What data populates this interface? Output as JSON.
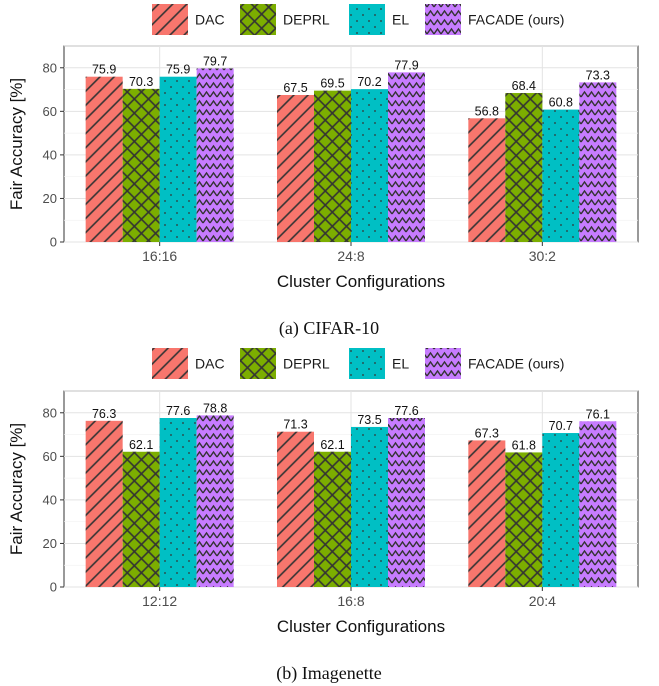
{
  "series_styles": [
    {
      "color": "#F8766D",
      "pattern": "stripe"
    },
    {
      "color": "#7CAE00",
      "pattern": "crosshatch"
    },
    {
      "color": "#00BFC4",
      "pattern": "dots"
    },
    {
      "color": "#C77CFF",
      "pattern": "zigzag"
    }
  ],
  "chart_data": [
    {
      "type": "bar",
      "caption": "(a) CIFAR-10",
      "xlabel": "Cluster Configurations",
      "ylabel": "Fair Accuracy [%]",
      "ylim": [
        0,
        90
      ],
      "yticks": [
        0,
        20,
        40,
        60,
        80
      ],
      "grid": true,
      "legend_position": "top",
      "categories": [
        "16:16",
        "24:8",
        "30:2"
      ],
      "series": [
        {
          "name": "DAC",
          "values": [
            75.9,
            67.5,
            56.8
          ]
        },
        {
          "name": "DEPRL",
          "values": [
            70.3,
            69.5,
            68.4
          ]
        },
        {
          "name": "EL",
          "values": [
            75.9,
            70.2,
            60.8
          ]
        },
        {
          "name": "FACADE (ours)",
          "values": [
            79.7,
            77.9,
            73.3
          ]
        }
      ]
    },
    {
      "type": "bar",
      "caption": "(b) Imagenette",
      "xlabel": "Cluster Configurations",
      "ylabel": "Fair Accuracy [%]",
      "ylim": [
        0,
        90
      ],
      "yticks": [
        0,
        20,
        40,
        60,
        80
      ],
      "grid": true,
      "legend_position": "top",
      "categories": [
        "12:12",
        "16:8",
        "20:4"
      ],
      "series": [
        {
          "name": "DAC",
          "values": [
            76.3,
            71.3,
            67.3
          ]
        },
        {
          "name": "DEPRL",
          "values": [
            62.1,
            62.1,
            61.8
          ]
        },
        {
          "name": "EL",
          "values": [
            77.6,
            73.5,
            70.7
          ]
        },
        {
          "name": "FACADE (ours)",
          "values": [
            78.8,
            77.6,
            76.1
          ]
        }
      ]
    }
  ]
}
